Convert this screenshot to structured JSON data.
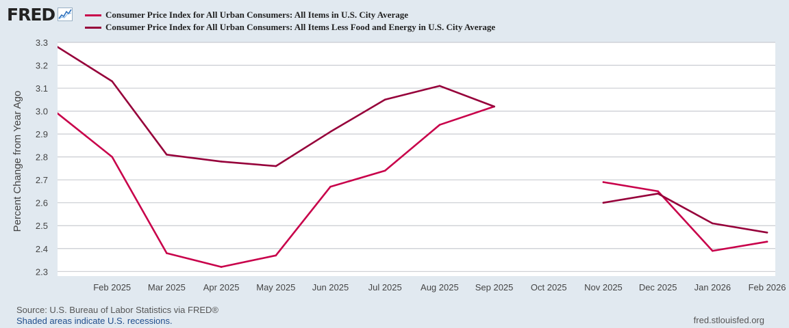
{
  "header": {
    "logo_text": "FRED",
    "logo_icon": "line-graph-icon"
  },
  "colors": {
    "background": "#e1e9f0",
    "plot_bg": "#ffffff",
    "grid": "#c9ccd1",
    "series_all_items": "#c8004a",
    "series_core": "#96003a"
  },
  "chart_data": {
    "type": "line",
    "title": "",
    "xlabel": "",
    "ylabel": "Percent Change from Year Ago",
    "ylim": [
      2.28,
      3.3
    ],
    "yticks": [
      "2.3",
      "2.4",
      "2.5",
      "2.6",
      "2.7",
      "2.8",
      "2.9",
      "3.0",
      "3.1",
      "3.2",
      "3.3"
    ],
    "x_range_months": [
      0,
      13.15
    ],
    "xticks": [
      {
        "label": "Feb 2025",
        "month": 1
      },
      {
        "label": "Mar 2025",
        "month": 2
      },
      {
        "label": "Apr 2025",
        "month": 3
      },
      {
        "label": "May 2025",
        "month": 4
      },
      {
        "label": "Jun 2025",
        "month": 5
      },
      {
        "label": "Jul 2025",
        "month": 6
      },
      {
        "label": "Aug 2025",
        "month": 7
      },
      {
        "label": "Sep 2025",
        "month": 8
      },
      {
        "label": "Oct 2025",
        "month": 9
      },
      {
        "label": "Nov 2025",
        "month": 10
      },
      {
        "label": "Dec 2025",
        "month": 11
      },
      {
        "label": "Jan 2026",
        "month": 12
      },
      {
        "label": "Feb 2026",
        "month": 13
      }
    ],
    "grid": true,
    "series": [
      {
        "name": "Consumer Price Index for All Urban Consumers: All Items in U.S. City Average",
        "key": "all-items",
        "segments": [
          [
            {
              "m": 0,
              "v": 2.99
            },
            {
              "m": 1,
              "v": 2.8
            },
            {
              "m": 2,
              "v": 2.38
            },
            {
              "m": 3,
              "v": 2.32
            },
            {
              "m": 4,
              "v": 2.37
            },
            {
              "m": 5,
              "v": 2.67
            },
            {
              "m": 6,
              "v": 2.74
            },
            {
              "m": 7,
              "v": 2.94
            },
            {
              "m": 8,
              "v": 3.02
            }
          ],
          [
            {
              "m": 10,
              "v": 2.69
            },
            {
              "m": 11,
              "v": 2.65
            },
            {
              "m": 12,
              "v": 2.39
            },
            {
              "m": 13,
              "v": 2.43
            }
          ]
        ]
      },
      {
        "name": "Consumer Price Index for All Urban Consumers: All Items Less Food and Energy in U.S. City Average",
        "key": "core",
        "segments": [
          [
            {
              "m": 0,
              "v": 3.28
            },
            {
              "m": 1,
              "v": 3.13
            },
            {
              "m": 2,
              "v": 2.81
            },
            {
              "m": 3,
              "v": 2.78
            },
            {
              "m": 4,
              "v": 2.76
            },
            {
              "m": 5,
              "v": 2.91
            },
            {
              "m": 6,
              "v": 3.05
            },
            {
              "m": 7,
              "v": 3.11
            },
            {
              "m": 8,
              "v": 3.02
            }
          ],
          [
            {
              "m": 10,
              "v": 2.6
            },
            {
              "m": 11,
              "v": 2.64
            },
            {
              "m": 12,
              "v": 2.51
            },
            {
              "m": 13,
              "v": 2.47
            }
          ]
        ]
      }
    ]
  },
  "footer": {
    "source": "Source: U.S. Bureau of Labor Statistics via FRED®",
    "recession_note": "Shaded areas indicate U.S. recessions.",
    "site": "fred.stlouisfed.org"
  }
}
